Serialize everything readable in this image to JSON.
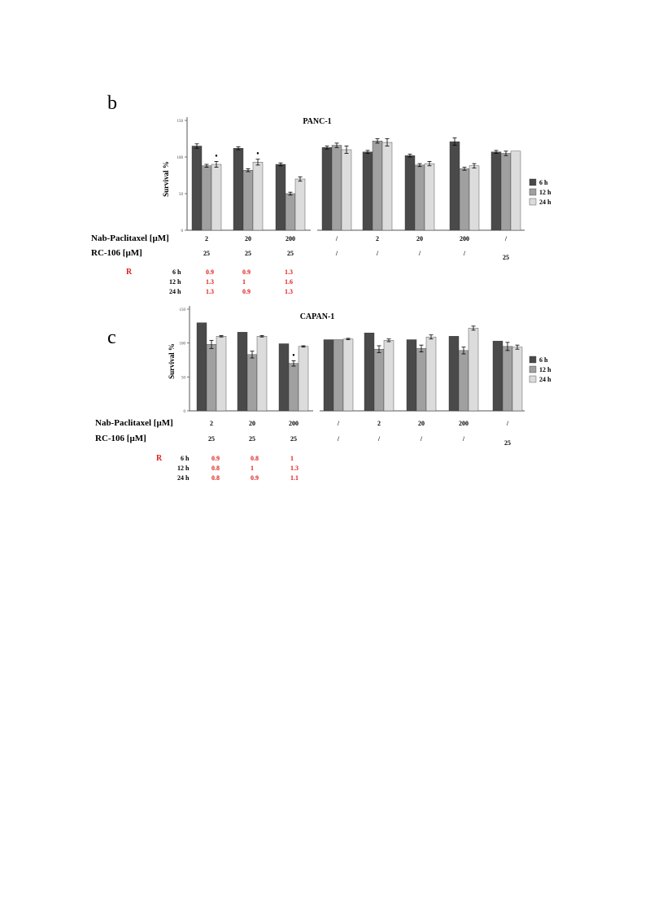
{
  "panels": [
    {
      "letter": "b",
      "row_labels": {
        "nab": "Nab-Paclitaxel [μM]",
        "rc": "RC-106 [μM]"
      },
      "chart_data": {
        "type": "bar",
        "title": "PANC-1",
        "ylabel": "Survival %",
        "ylim": [
          0,
          150
        ],
        "yticks": [
          "0",
          "50",
          "100",
          "150"
        ],
        "grid": false,
        "legend_position": "right",
        "colors": [
          "#4a4a4a",
          "#a0a0a0",
          "#dcdcdc"
        ],
        "series": [
          {
            "name": "6 h",
            "values": [
              115,
              112,
              90,
              113,
              107,
              102,
              121,
              107
            ]
          },
          {
            "name": "12 h",
            "values": [
              88,
              82,
              50,
              116,
              122,
              89,
              84,
              105
            ]
          },
          {
            "name": "24 h",
            "values": [
              90,
              93,
              70,
              110,
              120,
              91,
              88,
              108
            ]
          }
        ],
        "errors": [
          [
            3,
            2,
            2,
            2,
            2,
            2,
            5,
            2
          ],
          [
            2,
            2,
            2,
            3,
            3,
            2,
            2,
            3
          ],
          [
            4,
            4,
            3,
            5,
            5,
            3,
            3,
            0
          ]
        ],
        "asterisks": [
          "",
          "",
          "",
          "",
          "",
          "",
          "",
          "",
          "•",
          "•",
          "",
          "",
          "",
          "",
          "",
          ""
        ],
        "categories_nab": [
          "2",
          "20",
          "200",
          "/",
          "2",
          "20",
          "200",
          "/"
        ],
        "categories_rc": [
          "25",
          "25",
          "25",
          "/",
          "/",
          "/",
          "/",
          "25"
        ],
        "r_table": {
          "label": "R",
          "rows": [
            {
              "time": "6 h",
              "values": [
                "0.9",
                "0.9",
                "1.3"
              ]
            },
            {
              "time": "12 h",
              "values": [
                "1.3",
                "1",
                "1.6"
              ]
            },
            {
              "time": "24 h",
              "values": [
                "1.3",
                "0.9",
                "1.3"
              ]
            }
          ]
        }
      }
    },
    {
      "letter": "c",
      "row_labels": {
        "nab": "Nab-Paclitaxel [μM]",
        "rc": "RC-106 [μM]"
      },
      "chart_data": {
        "type": "bar",
        "title": "CAPAN-1",
        "ylabel": "Survival %",
        "ylim": [
          0,
          150
        ],
        "yticks": [
          "0",
          "50",
          "100",
          "150"
        ],
        "grid": false,
        "legend_position": "right",
        "colors": [
          "#4a4a4a",
          "#a0a0a0",
          "#dcdcdc"
        ],
        "series": [
          {
            "name": "6 h",
            "values": [
              130,
              116,
              99,
              105,
              115,
              105,
              110,
              103
            ]
          },
          {
            "name": "12 h",
            "values": [
              98,
              83,
              70,
              105,
              91,
              92,
              89,
              95
            ]
          },
          {
            "name": "24 h",
            "values": [
              110,
              110,
              95,
              106,
              104,
              109,
              122,
              94
            ]
          }
        ],
        "errors": [
          [
            0,
            0,
            0,
            0,
            0,
            0,
            0,
            0
          ],
          [
            6,
            5,
            4,
            0,
            5,
            5,
            5,
            6
          ],
          [
            1,
            1,
            1,
            1,
            2,
            3,
            3,
            3
          ]
        ],
        "asterisks": [
          "",
          "",
          "•",
          "",
          "",
          "",
          "",
          "",
          "",
          "",
          "",
          "",
          "",
          "",
          "",
          ""
        ],
        "categories_nab": [
          "2",
          "20",
          "200",
          "/",
          "2",
          "20",
          "200",
          "/"
        ],
        "categories_rc": [
          "25",
          "25",
          "25",
          "/",
          "/",
          "/",
          "/",
          "25"
        ],
        "r_table": {
          "label": "R",
          "rows": [
            {
              "time": "6 h",
              "values": [
                "0.9",
                "0.8",
                "1"
              ]
            },
            {
              "time": "12 h",
              "values": [
                "0.8",
                "1",
                "1.3"
              ]
            },
            {
              "time": "24 h",
              "values": [
                "0.8",
                "0.9",
                "1.1"
              ]
            }
          ]
        }
      }
    }
  ]
}
